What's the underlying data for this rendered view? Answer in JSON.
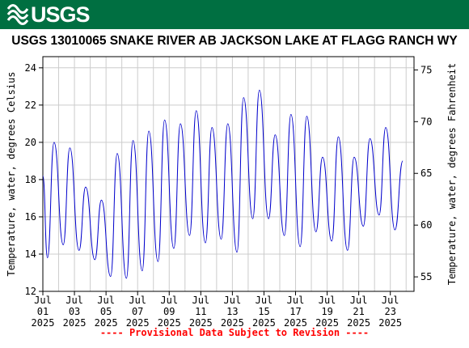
{
  "banner": {
    "logo_text": "USGS",
    "color": "#006f41"
  },
  "footnote": "---- Provisional Data Subject to Revision ----",
  "chart_data": {
    "type": "line",
    "title": "USGS 13010065 SNAKE RIVER AB JACKSON LAKE AT FLAGG RANCH WY",
    "ylabel": "Temperature, water, degrees Celsius",
    "ylabel_right": "Temperature, water, degrees Fahrenheit",
    "ylim": [
      12,
      24.6
    ],
    "yticks": [
      12,
      14,
      16,
      18,
      20,
      22,
      24
    ],
    "ylim_right": [
      53.6,
      76.28
    ],
    "yticks_right": [
      55,
      60,
      65,
      70,
      75
    ],
    "xlim": [
      "2025-07-01T00:00",
      "2025-07-24T12:00"
    ],
    "xticks": [
      {
        "date": "2025-07-01",
        "label": [
          "Jul",
          "01",
          "2025"
        ]
      },
      {
        "date": "2025-07-03",
        "label": [
          "Jul",
          "03",
          "2025"
        ]
      },
      {
        "date": "2025-07-05",
        "label": [
          "Jul",
          "05",
          "2025"
        ]
      },
      {
        "date": "2025-07-07",
        "label": [
          "Jul",
          "07",
          "2025"
        ]
      },
      {
        "date": "2025-07-09",
        "label": [
          "Jul",
          "09",
          "2025"
        ]
      },
      {
        "date": "2025-07-11",
        "label": [
          "Jul",
          "11",
          "2025"
        ]
      },
      {
        "date": "2025-07-13",
        "label": [
          "Jul",
          "13",
          "2025"
        ]
      },
      {
        "date": "2025-07-15",
        "label": [
          "Jul",
          "15",
          "2025"
        ]
      },
      {
        "date": "2025-07-17",
        "label": [
          "Jul",
          "17",
          "2025"
        ]
      },
      {
        "date": "2025-07-19",
        "label": [
          "Jul",
          "19",
          "2025"
        ]
      },
      {
        "date": "2025-07-21",
        "label": [
          "Jul",
          "21",
          "2025"
        ]
      },
      {
        "date": "2025-07-23",
        "label": [
          "Jul",
          "23",
          "2025"
        ]
      }
    ],
    "grid": true,
    "series": [
      {
        "color": "#0000cc",
        "points": [
          [
            "2025-07-01T00:00",
            18.2
          ],
          [
            "2025-07-01T07:00",
            13.8
          ],
          [
            "2025-07-01T17:00",
            20.0
          ],
          [
            "2025-07-02T07:00",
            14.5
          ],
          [
            "2025-07-02T17:00",
            19.7
          ],
          [
            "2025-07-03T07:00",
            14.2
          ],
          [
            "2025-07-03T17:00",
            17.6
          ],
          [
            "2025-07-04T07:00",
            13.7
          ],
          [
            "2025-07-04T17:00",
            16.9
          ],
          [
            "2025-07-05T07:00",
            12.8
          ],
          [
            "2025-07-05T17:00",
            19.4
          ],
          [
            "2025-07-06T07:00",
            12.7
          ],
          [
            "2025-07-06T17:00",
            20.1
          ],
          [
            "2025-07-07T07:00",
            13.1
          ],
          [
            "2025-07-07T17:00",
            20.6
          ],
          [
            "2025-07-08T07:00",
            13.6
          ],
          [
            "2025-07-08T17:00",
            21.2
          ],
          [
            "2025-07-09T07:00",
            14.3
          ],
          [
            "2025-07-09T17:00",
            21.0
          ],
          [
            "2025-07-10T07:00",
            15.0
          ],
          [
            "2025-07-10T17:00",
            21.7
          ],
          [
            "2025-07-11T07:00",
            14.6
          ],
          [
            "2025-07-11T17:00",
            20.8
          ],
          [
            "2025-07-12T07:00",
            14.8
          ],
          [
            "2025-07-12T17:00",
            21.0
          ],
          [
            "2025-07-13T07:00",
            14.1
          ],
          [
            "2025-07-13T17:00",
            22.4
          ],
          [
            "2025-07-14T07:00",
            15.9
          ],
          [
            "2025-07-14T17:00",
            22.8
          ],
          [
            "2025-07-15T07:00",
            15.9
          ],
          [
            "2025-07-15T17:00",
            20.4
          ],
          [
            "2025-07-16T07:00",
            15.0
          ],
          [
            "2025-07-16T17:00",
            21.5
          ],
          [
            "2025-07-17T07:00",
            14.4
          ],
          [
            "2025-07-17T17:00",
            21.4
          ],
          [
            "2025-07-18T07:00",
            15.2
          ],
          [
            "2025-07-18T17:00",
            19.2
          ],
          [
            "2025-07-19T07:00",
            14.7
          ],
          [
            "2025-07-19T17:00",
            20.3
          ],
          [
            "2025-07-20T07:00",
            14.2
          ],
          [
            "2025-07-20T17:00",
            19.2
          ],
          [
            "2025-07-21T07:00",
            15.5
          ],
          [
            "2025-07-21T17:00",
            20.2
          ],
          [
            "2025-07-22T07:00",
            16.1
          ],
          [
            "2025-07-22T17:00",
            20.8
          ],
          [
            "2025-07-23T07:00",
            15.3
          ],
          [
            "2025-07-23T19:00",
            19.0
          ]
        ]
      }
    ]
  }
}
